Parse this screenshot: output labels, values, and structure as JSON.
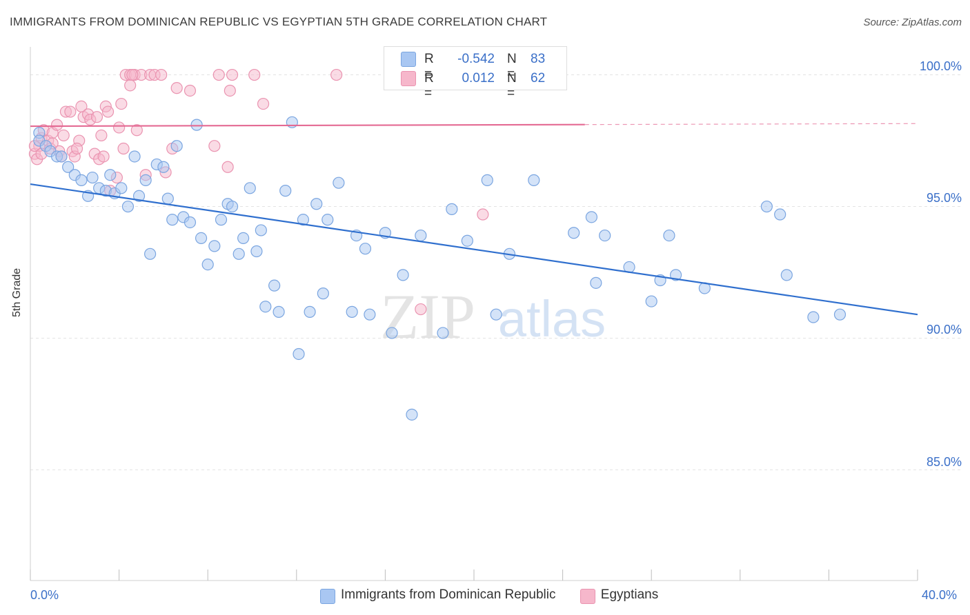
{
  "title": "IMMIGRANTS FROM DOMINICAN REPUBLIC VS EGYPTIAN 5TH GRADE CORRELATION CHART",
  "source": "Source: ZipAtlas.com",
  "watermark": {
    "zip": "ZIP",
    "atlas": "atlas"
  },
  "legend_stats": [
    {
      "r_label": "R =",
      "r_value": "-0.542",
      "n_label": "N =",
      "n_value": "83",
      "color": "#a9c7f2"
    },
    {
      "r_label": "R =",
      "r_value": "0.012",
      "n_label": "N =",
      "n_value": "62",
      "color": "#f6b7cb"
    }
  ],
  "colors": {
    "blue_fill": "#a9c7f2",
    "blue_stroke": "#7aa5e0",
    "blue_line": "#2f6fce",
    "pink_fill": "#f6b7cb",
    "pink_stroke": "#ea93b0",
    "pink_line": "#e46a93",
    "tick_text": "#3a6fc8",
    "grid": "#e3e3e3"
  },
  "chart_data": {
    "type": "scatter",
    "title": "IMMIGRANTS FROM DOMINICAN REPUBLIC VS EGYPTIAN 5TH GRADE CORRELATION CHART",
    "xlabel": "",
    "ylabel": "5th Grade",
    "xlim": [
      0,
      40
    ],
    "ylim": [
      80.8,
      100.8
    ],
    "x_tick_labels": [
      "0.0%",
      "40.0%"
    ],
    "y_ticks": [
      85,
      90,
      95,
      100
    ],
    "y_tick_labels": [
      "85.0%",
      "90.0%",
      "95.0%",
      "100.0%"
    ],
    "grid": true,
    "legend_position": "bottom",
    "series": [
      {
        "name": "Immigrants from Dominican Republic",
        "color": "#a9c7f2",
        "trend": {
          "x": [
            0,
            40
          ],
          "y": [
            95.85,
            90.9
          ],
          "dashed_from": null
        },
        "points": [
          [
            0.4,
            97.8
          ],
          [
            0.4,
            97.5
          ],
          [
            0.7,
            97.3
          ],
          [
            0.9,
            97.1
          ],
          [
            1.2,
            96.9
          ],
          [
            1.4,
            96.9
          ],
          [
            1.7,
            96.5
          ],
          [
            2.0,
            96.2
          ],
          [
            2.3,
            96.0
          ],
          [
            2.6,
            95.4
          ],
          [
            2.8,
            96.1
          ],
          [
            3.1,
            95.7
          ],
          [
            3.4,
            95.6
          ],
          [
            3.6,
            96.2
          ],
          [
            3.8,
            95.5
          ],
          [
            4.1,
            95.7
          ],
          [
            4.4,
            95.0
          ],
          [
            4.7,
            96.9
          ],
          [
            4.9,
            95.4
          ],
          [
            5.2,
            96.0
          ],
          [
            5.4,
            93.2
          ],
          [
            5.7,
            96.6
          ],
          [
            6.0,
            96.5
          ],
          [
            6.2,
            95.3
          ],
          [
            6.4,
            94.5
          ],
          [
            6.6,
            97.3
          ],
          [
            6.9,
            94.6
          ],
          [
            7.2,
            94.4
          ],
          [
            7.5,
            98.1
          ],
          [
            7.7,
            93.8
          ],
          [
            8.0,
            92.8
          ],
          [
            8.3,
            93.5
          ],
          [
            8.6,
            94.5
          ],
          [
            8.9,
            95.1
          ],
          [
            9.1,
            95.0
          ],
          [
            9.4,
            93.2
          ],
          [
            9.6,
            93.8
          ],
          [
            9.9,
            95.7
          ],
          [
            10.2,
            93.3
          ],
          [
            10.4,
            94.1
          ],
          [
            10.6,
            91.2
          ],
          [
            11.0,
            92.0
          ],
          [
            11.2,
            91.0
          ],
          [
            11.5,
            95.6
          ],
          [
            11.8,
            98.2
          ],
          [
            12.1,
            89.4
          ],
          [
            12.3,
            94.5
          ],
          [
            12.6,
            91.0
          ],
          [
            12.9,
            95.1
          ],
          [
            13.2,
            91.7
          ],
          [
            13.4,
            94.5
          ],
          [
            13.9,
            95.9
          ],
          [
            14.5,
            91.0
          ],
          [
            14.7,
            93.9
          ],
          [
            15.1,
            93.4
          ],
          [
            15.3,
            90.9
          ],
          [
            16.0,
            94.0
          ],
          [
            16.3,
            90.2
          ],
          [
            16.8,
            92.4
          ],
          [
            17.2,
            87.1
          ],
          [
            17.6,
            93.9
          ],
          [
            18.6,
            90.2
          ],
          [
            19.0,
            94.9
          ],
          [
            19.7,
            93.7
          ],
          [
            20.6,
            96.0
          ],
          [
            21.0,
            90.9
          ],
          [
            21.6,
            93.2
          ],
          [
            22.7,
            96.0
          ],
          [
            24.5,
            94.0
          ],
          [
            25.3,
            94.6
          ],
          [
            25.5,
            92.1
          ],
          [
            25.9,
            93.9
          ],
          [
            27.0,
            92.7
          ],
          [
            28.0,
            91.4
          ],
          [
            28.4,
            92.2
          ],
          [
            28.8,
            93.9
          ],
          [
            29.1,
            92.4
          ],
          [
            30.4,
            91.9
          ],
          [
            33.2,
            95.0
          ],
          [
            33.8,
            94.7
          ],
          [
            34.1,
            92.4
          ],
          [
            35.3,
            90.8
          ],
          [
            36.5,
            90.9
          ]
        ]
      },
      {
        "name": "Egyptians",
        "color": "#f6b7cb",
        "trend": {
          "x": [
            0,
            40
          ],
          "y": [
            98.05,
            98.15
          ],
          "dashed_from": 25
        },
        "points": [
          [
            0.2,
            97.0
          ],
          [
            0.3,
            96.8
          ],
          [
            0.4,
            97.3
          ],
          [
            0.5,
            97.6
          ],
          [
            0.6,
            97.9
          ],
          [
            0.8,
            97.5
          ],
          [
            0.9,
            97.2
          ],
          [
            1.0,
            97.8
          ],
          [
            1.2,
            98.1
          ],
          [
            1.3,
            97.1
          ],
          [
            1.4,
            96.9
          ],
          [
            1.6,
            98.6
          ],
          [
            1.8,
            98.6
          ],
          [
            1.9,
            97.1
          ],
          [
            2.0,
            96.9
          ],
          [
            2.2,
            97.5
          ],
          [
            2.3,
            98.8
          ],
          [
            2.4,
            98.4
          ],
          [
            2.6,
            98.5
          ],
          [
            2.7,
            98.3
          ],
          [
            2.9,
            97.0
          ],
          [
            3.0,
            98.4
          ],
          [
            3.1,
            96.8
          ],
          [
            3.2,
            97.7
          ],
          [
            3.4,
            98.8
          ],
          [
            3.5,
            98.6
          ],
          [
            3.6,
            95.6
          ],
          [
            3.9,
            96.1
          ],
          [
            4.0,
            98.0
          ],
          [
            4.1,
            98.9
          ],
          [
            4.2,
            97.2
          ],
          [
            4.3,
            100.0
          ],
          [
            4.5,
            100.0
          ],
          [
            4.5,
            99.6
          ],
          [
            4.7,
            100.0
          ],
          [
            4.8,
            97.9
          ],
          [
            5.0,
            100.0
          ],
          [
            5.2,
            96.2
          ],
          [
            5.4,
            100.0
          ],
          [
            5.6,
            100.0
          ],
          [
            5.9,
            100.0
          ],
          [
            6.1,
            96.3
          ],
          [
            6.4,
            97.2
          ],
          [
            6.6,
            99.5
          ],
          [
            7.2,
            99.4
          ],
          [
            8.3,
            97.3
          ],
          [
            8.5,
            100.0
          ],
          [
            8.9,
            96.5
          ],
          [
            9.0,
            99.4
          ],
          [
            9.1,
            100.0
          ],
          [
            10.1,
            100.0
          ],
          [
            10.5,
            98.9
          ],
          [
            13.8,
            100.0
          ],
          [
            17.6,
            91.1
          ],
          [
            20.4,
            94.7
          ],
          [
            0.2,
            97.3
          ],
          [
            0.5,
            97.0
          ],
          [
            1.0,
            97.4
          ],
          [
            1.5,
            97.7
          ],
          [
            2.1,
            97.2
          ],
          [
            3.3,
            96.9
          ],
          [
            4.6,
            100.0
          ]
        ]
      }
    ]
  }
}
